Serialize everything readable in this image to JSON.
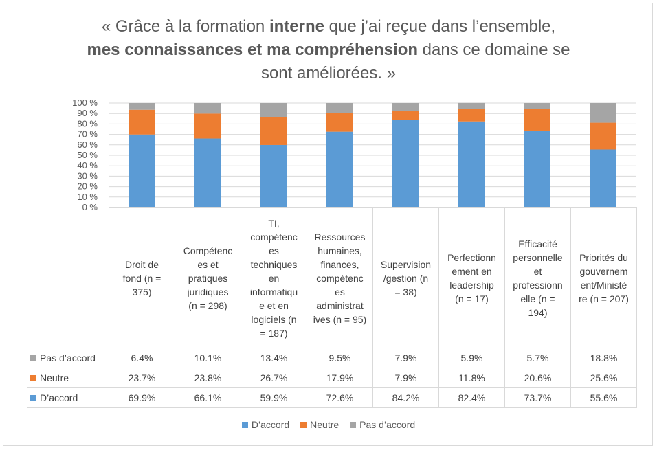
{
  "title": {
    "line1_prefix": "« Grâce à la formation ",
    "line1_bold": "interne",
    "line1_suffix": " que j’ai reçue dans l’ensemble,",
    "line2_bold": "mes connaissances et ma compréhension",
    "line2_suffix": " dans ce domaine se",
    "line3": "sont améliorées. »"
  },
  "colors": {
    "accord": "#5b9bd5",
    "neutre": "#ed7d31",
    "pas": "#a5a5a5",
    "grid": "#d9d9d9"
  },
  "chart_data": {
    "type": "bar",
    "stacked": true,
    "normalized_percent": true,
    "categories": [
      "Droit de fond (n = 375)",
      "Compétences et pratiques juridiques (n = 298)",
      "TI, compétences techniques en informatique et en logiciels (n = 187)",
      "Ressources humaines, finances, compétences administratives (n = 95)",
      "Supervision /gestion (n = 38)",
      "Perfectionnement en leadership (n = 17)",
      "Efficacité personnelle et professionnelle (n = 194)",
      "Priorités du gouvernement/Ministère (n = 207)"
    ],
    "category_lines": [
      [
        "Droit de",
        "fond (n =",
        "375)"
      ],
      [
        "Compétenc",
        "es et",
        "pratiques",
        "juridiques",
        "(n = 298)"
      ],
      [
        "TI,",
        "compétenc",
        "es",
        "techniques",
        "en",
        "informatiqu",
        "e et en",
        "logiciels (n",
        "= 187)"
      ],
      [
        "Ressources",
        "humaines,",
        "finances,",
        "compétenc",
        "es",
        "administrat",
        "ives (n = 95)"
      ],
      [
        "Supervision",
        "/gestion (n",
        "= 38)"
      ],
      [
        "Perfectionn",
        "ement en",
        "leadership",
        "(n = 17)"
      ],
      [
        "Efficacité",
        "personnelle",
        "et",
        "professionn",
        "elle (n =",
        "194)"
      ],
      [
        "Priorités du",
        "gouvernem",
        "ent/Ministè",
        "re (n = 207)"
      ]
    ],
    "series": [
      {
        "name": "D’accord",
        "values": [
          69.9,
          66.1,
          59.9,
          72.6,
          84.2,
          82.4,
          73.7,
          55.6
        ],
        "labels": [
          "69.9%",
          "66.1%",
          "59.9%",
          "72.6%",
          "84.2%",
          "82.4%",
          "73.7%",
          "55.6%"
        ]
      },
      {
        "name": "Neutre",
        "values": [
          23.7,
          23.8,
          26.7,
          17.9,
          7.9,
          11.8,
          20.6,
          25.6
        ],
        "labels": [
          "23.7%",
          "23.8%",
          "26.7%",
          "17.9%",
          "7.9%",
          "11.8%",
          "20.6%",
          "25.6%"
        ]
      },
      {
        "name": "Pas d’accord",
        "values": [
          6.4,
          10.1,
          13.4,
          9.5,
          7.9,
          5.9,
          5.7,
          18.8
        ],
        "labels": [
          "6.4%",
          "10.1%",
          "13.4%",
          "9.5%",
          "7.9%",
          "5.9%",
          "5.7%",
          "18.8%"
        ]
      }
    ],
    "y_ticks": [
      "0 %",
      "10 %",
      "20 %",
      "30 %",
      "40 %",
      "50 %",
      "60 %",
      "70 %",
      "80 %",
      "90 %",
      "100 %"
    ],
    "ylim": [
      0,
      100
    ],
    "grid": true,
    "legend_position": "bottom",
    "data_table": true
  },
  "legend": [
    "D’accord",
    "Neutre",
    "Pas d’accord"
  ]
}
